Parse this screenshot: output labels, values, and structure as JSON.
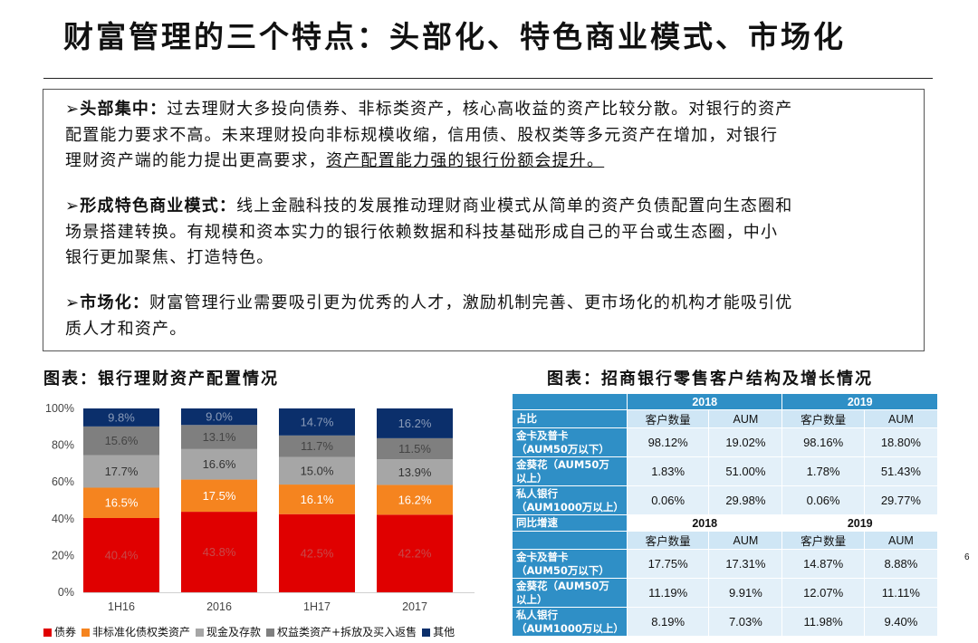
{
  "title": "财富管理的三个特点：头部化、特色商业模式、市场化",
  "points": [
    {
      "head": "头部集中：",
      "line1": "过去理财大多投向债券、非标类资产，核心高收益的资产比较分散。对银行的资产",
      "line2": "配置能力要求不高。未来理财投向非标规模收缩，信用债、股权类等多元资产在增加，对银行",
      "line3a": "理财资产端的能力提出更高要求，",
      "line3b": "资产配置能力强的银行份额会提升。"
    },
    {
      "head": "形成特色商业模式：",
      "line1": "线上金融科技的发展推动理财商业模式从简单的资产负债配置向生态圈和",
      "line2": "场景搭建转换。有规模和资本实力的银行依赖数据和科技基础形成自己的平台或生态圈，中小",
      "line3": "银行更加聚焦、打造特色。"
    },
    {
      "head": "市场化：",
      "line1": "财富管理行业需要吸引更为优秀的人才，激励机制完善、更市场化的机构才能吸引优",
      "line2": "质人才和资产。"
    }
  ],
  "chart_caption": "图表：银行理财资产配置情况",
  "table_caption": "图表：招商银行零售客户结构及增长情况",
  "chart_data": {
    "type": "bar",
    "stacked": true,
    "categories": [
      "1H16",
      "2016",
      "1H17",
      "2017"
    ],
    "yticks": [
      "0%",
      "20%",
      "40%",
      "60%",
      "80%",
      "100%"
    ],
    "ylim": [
      0,
      100
    ],
    "series": [
      {
        "name": "债券",
        "color": "#e00000",
        "values": [
          40.4,
          43.8,
          42.5,
          42.2
        ],
        "labels": [
          "40.4%",
          "43.8%",
          "42.5%",
          "42.2%"
        ],
        "label_color": "#c84848"
      },
      {
        "name": "非标准化债权类资产",
        "color": "#f5841f",
        "values": [
          16.5,
          17.5,
          16.1,
          16.2
        ],
        "labels": [
          "16.5%",
          "17.5%",
          "16.1%",
          "16.2%"
        ],
        "label_color": "#ffffff"
      },
      {
        "name": "现金及存款",
        "color": "#a6a6a6",
        "values": [
          17.7,
          16.6,
          15.0,
          13.9
        ],
        "labels": [
          "17.7%",
          "16.6%",
          "15.0%",
          "13.9%"
        ],
        "label_color": "#333333"
      },
      {
        "name": "权益类资产+拆放及买入返售",
        "color": "#7f7f7f",
        "values": [
          15.6,
          13.1,
          11.7,
          11.5
        ],
        "labels": [
          "15.6%",
          "13.1%",
          "11.7%",
          "11.5%"
        ],
        "label_color": "#444444"
      },
      {
        "name": "其他",
        "color": "#0b2f6b",
        "values": [
          9.8,
          9.0,
          14.7,
          16.2
        ],
        "labels": [
          "9.8%",
          "9.0%",
          "14.7%",
          "16.2%"
        ],
        "label_color": "#8a9bb8"
      }
    ]
  },
  "table": {
    "years": [
      "2018",
      "2019"
    ],
    "sec1": {
      "label": "占比",
      "rows": [
        {
          "l1": "金卡及普卡",
          "l2": "（AUM50万以下）",
          "v": [
            "98.12%",
            "19.02%",
            "98.16%",
            "18.80%"
          ]
        },
        {
          "l1": "金葵花（AUM50万",
          "l2": "以上）",
          "v": [
            "1.83%",
            "51.00%",
            "1.78%",
            "51.43%"
          ]
        },
        {
          "l1": "私人银行",
          "l2": "（AUM1000万以上）",
          "v": [
            "0.06%",
            "29.98%",
            "0.06%",
            "29.77%"
          ]
        }
      ]
    },
    "sec2": {
      "label": "同比增速",
      "rows": [
        {
          "l1": "金卡及普卡",
          "l2": "（AUM50万以下）",
          "v": [
            "17.75%",
            "17.31%",
            "14.87%",
            "8.88%"
          ]
        },
        {
          "l1": "金葵花（AUM50万",
          "l2": "以上）",
          "v": [
            "11.19%",
            "9.91%",
            "12.07%",
            "11.11%"
          ]
        },
        {
          "l1": "私人银行",
          "l2": "（AUM1000万以上）",
          "v": [
            "8.19%",
            "7.03%",
            "11.98%",
            "9.40%"
          ]
        }
      ]
    },
    "colheads": [
      "客户数量",
      "AUM",
      "客户数量",
      "AUM"
    ]
  },
  "page_number": "6"
}
